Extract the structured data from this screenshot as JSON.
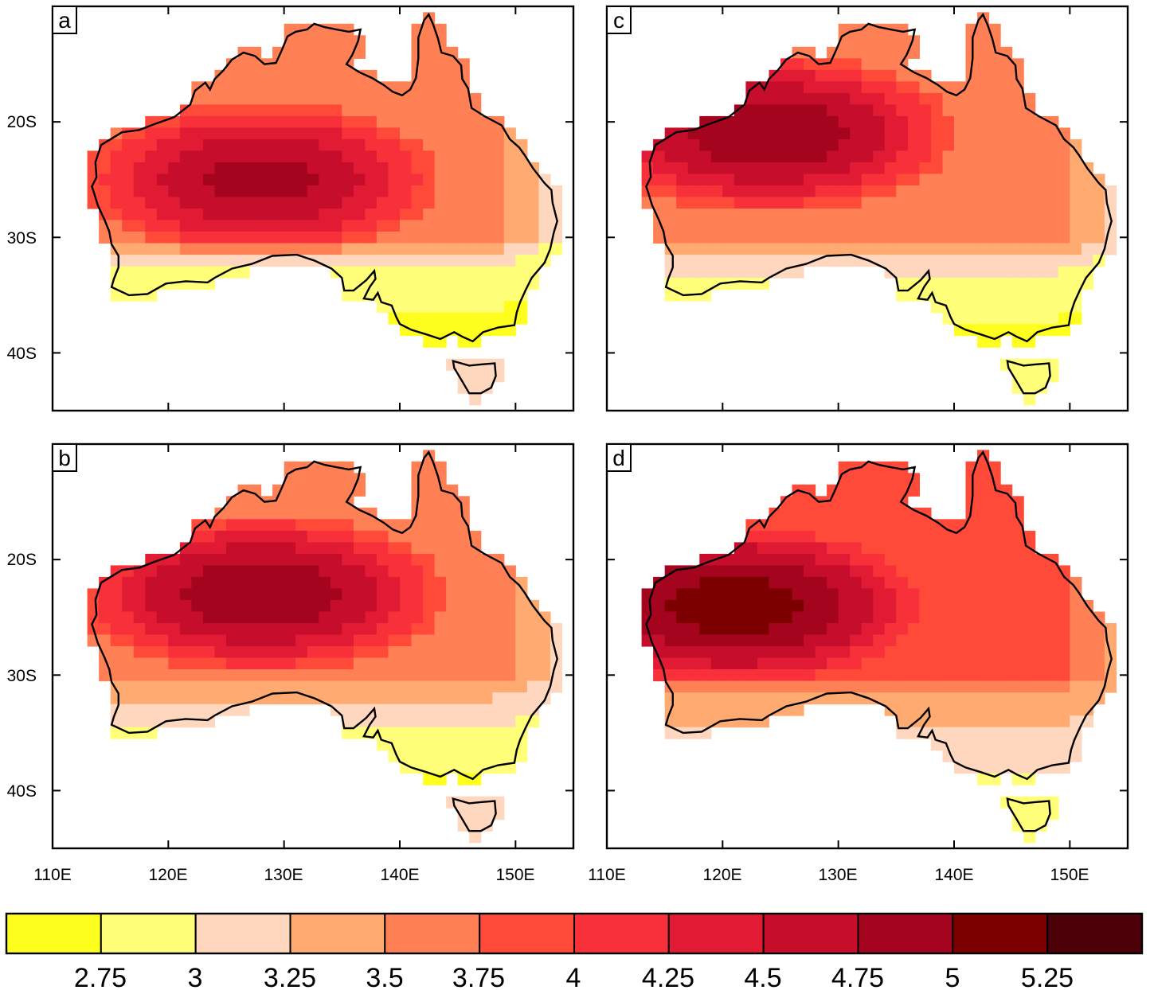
{
  "colorbar": {
    "colors": [
      "#ffff1f",
      "#ffff7a",
      "#ffd7be",
      "#ffaa70",
      "#ff8055",
      "#ff4a3a",
      "#f8303a",
      "#e21b34",
      "#c60e2c",
      "#a4041e",
      "#7c0000",
      "#4c0008"
    ],
    "labels": [
      "2.75",
      "3",
      "3.25",
      "3.5",
      "3.75",
      "4",
      "4.25",
      "4.5",
      "4.75",
      "5",
      "5.25"
    ]
  },
  "axes": {
    "lon_ticks": [
      110,
      120,
      130,
      140,
      150
    ],
    "lon_labels": [
      "110E",
      "120E",
      "130E",
      "140E",
      "150E"
    ],
    "lat_ticks": [
      -20,
      -30,
      -40
    ],
    "lat_labels": [
      "20S",
      "30S",
      "40S"
    ],
    "lon_range": [
      110,
      155
    ],
    "lat_range": [
      -45,
      -10
    ]
  },
  "panels": [
    {
      "id": "a",
      "label": "a",
      "peak_lon": 128,
      "peak_lat": -25,
      "peak_val": 4.85,
      "south_val": 3.0,
      "tas_val": 3.2
    },
    {
      "id": "c",
      "label": "c",
      "peak_lon": 124,
      "peak_lat": -21,
      "peak_val": 4.95,
      "south_val": 3.05,
      "tas_val": 2.8
    },
    {
      "id": "b",
      "label": "b",
      "peak_lon": 128,
      "peak_lat": -23,
      "peak_val": 4.95,
      "south_val": 3.15,
      "tas_val": 3.1
    },
    {
      "id": "d",
      "label": "d",
      "peak_lon": 121,
      "peak_lat": -24,
      "peak_val": 5.15,
      "south_val": 3.4,
      "tas_val": 2.8
    }
  ]
}
